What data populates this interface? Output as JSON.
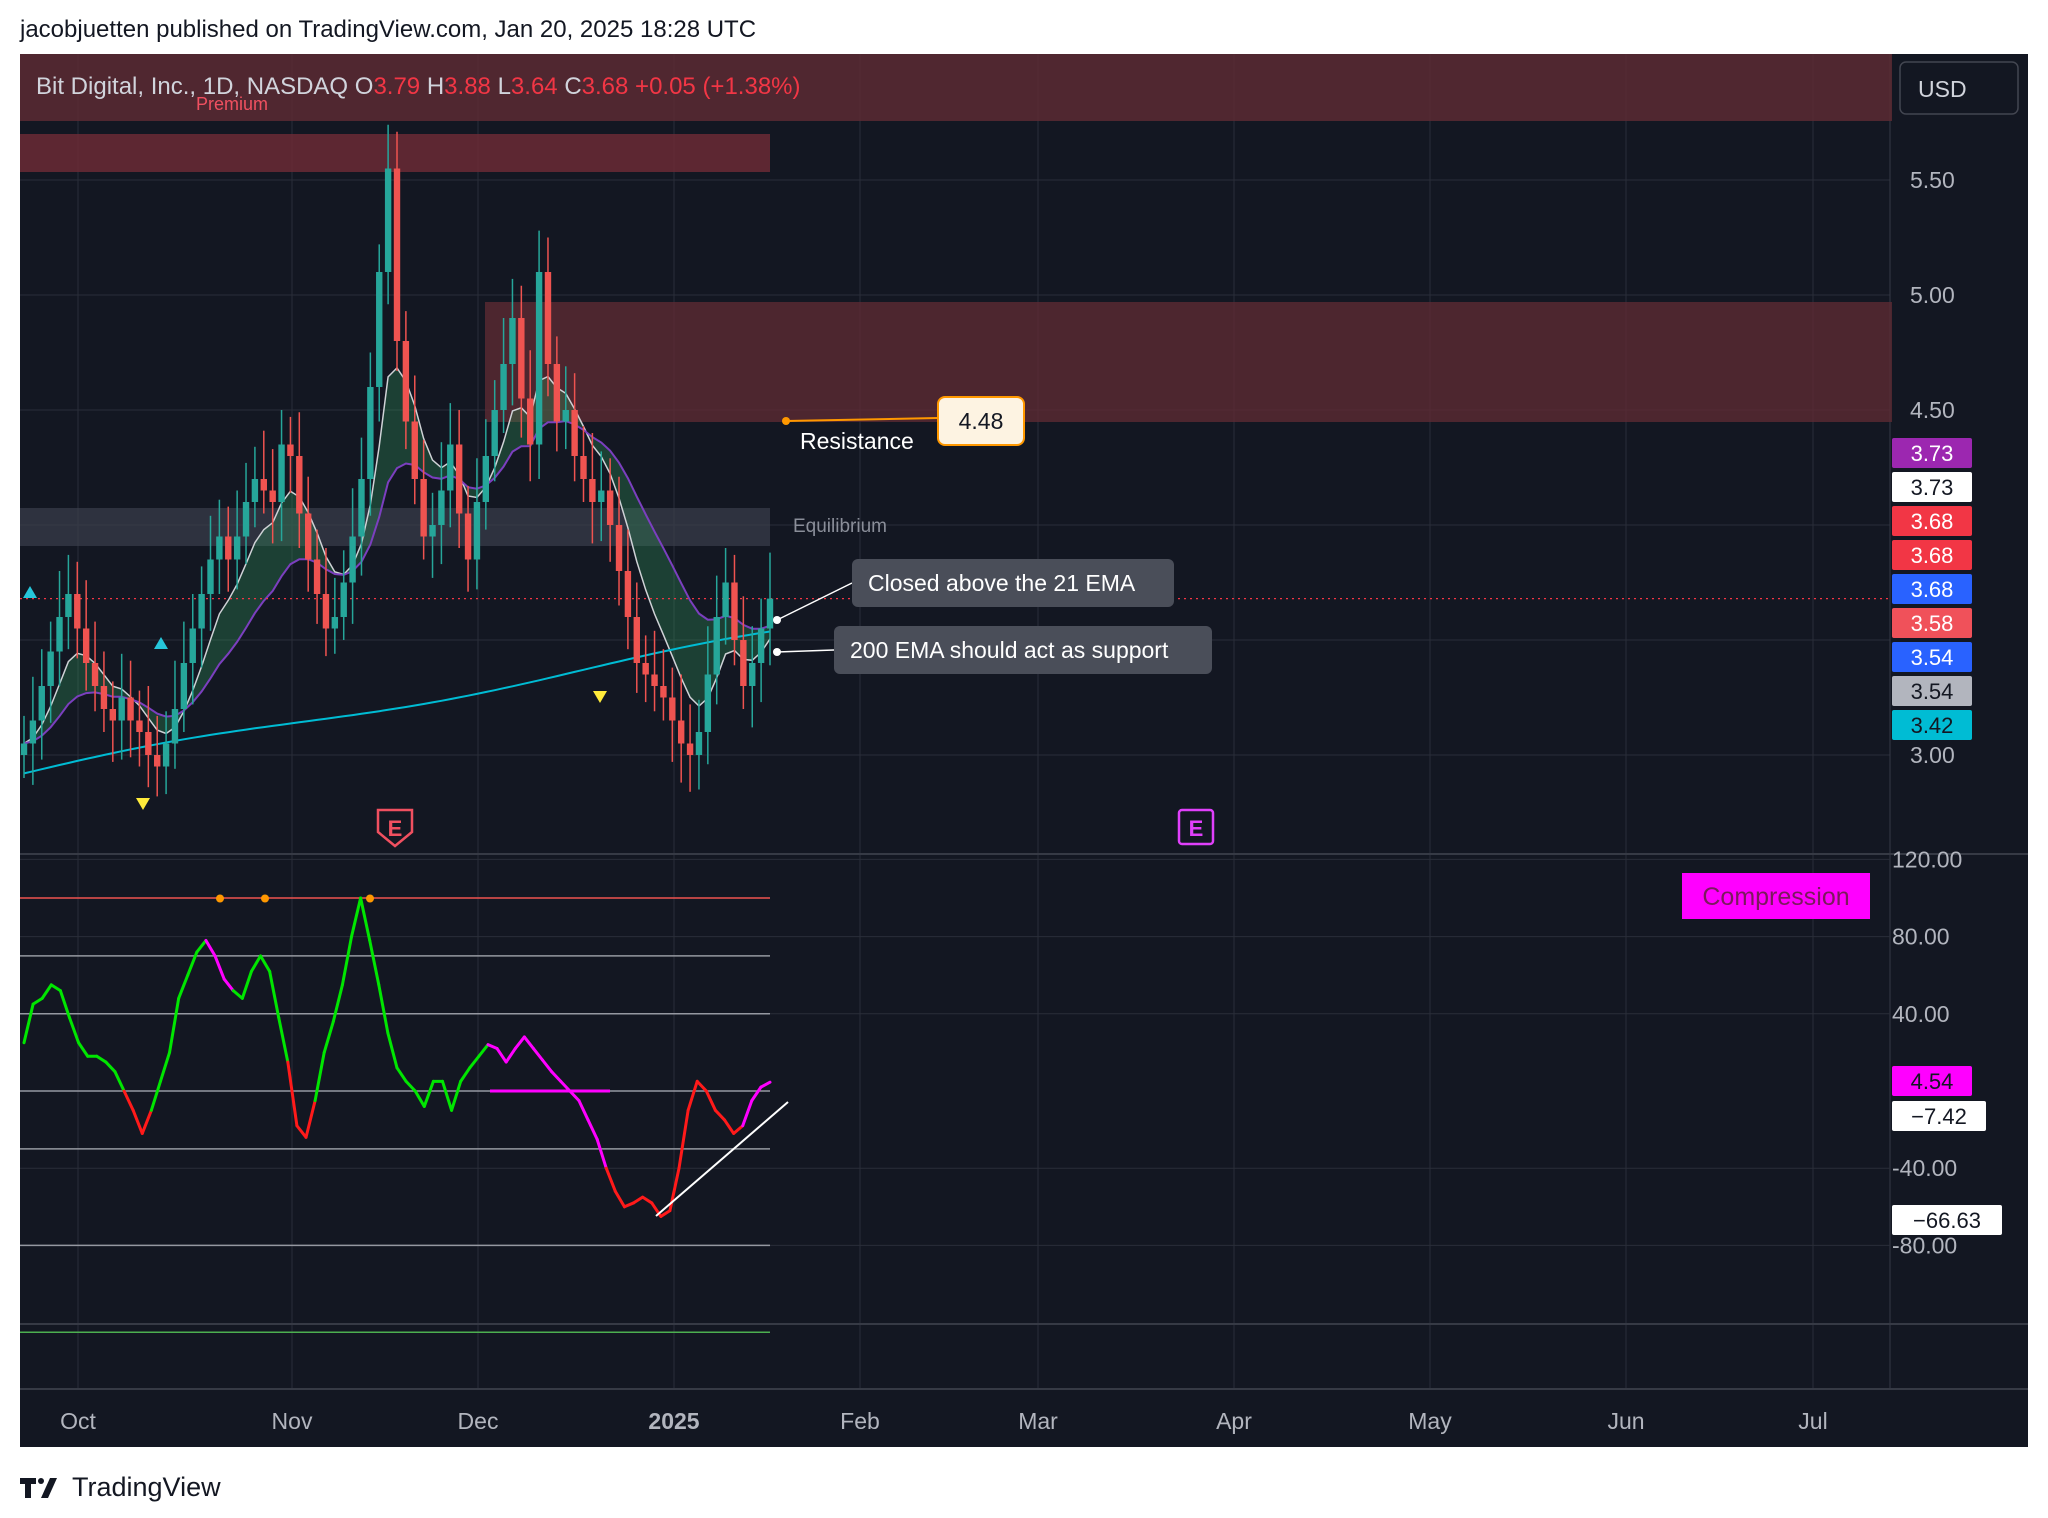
{
  "header": {
    "publisher": "jacobjuetten published on TradingView.com, Jan 20, 2025 18:28 UTC"
  },
  "footer": {
    "brand": "TradingView",
    "logo_icon": "tradingview-logo-icon"
  },
  "currency_button": "USD",
  "colors": {
    "bg": "#131722",
    "grid": "#2a2e39",
    "up": "#26a69a",
    "down": "#ef5350",
    "ema200": "#00bcd4",
    "osc_pos": "#00e600",
    "osc_neg": "#ff1a1a",
    "osc_comp": "#ff00ff",
    "zone": "#5c2a33",
    "equilibrium": "#3a3f4b"
  },
  "chart_data": [
    {
      "type": "candlestick",
      "title": "Bit Digital, Inc., 1D, NASDAQ",
      "ohlc": {
        "o_label": "O",
        "o": "3.79",
        "h_label": "H",
        "h": "3.88",
        "l_label": "L",
        "l": "3.64",
        "c_label": "C",
        "c": "3.68",
        "change": "+0.05 (+1.38%)"
      },
      "x_labels": [
        "Oct",
        "Nov",
        "Dec",
        "2025",
        "Feb",
        "Mar",
        "Apr",
        "May",
        "Jun",
        "Jul"
      ],
      "y_ticks": [
        "5.50",
        "5.00",
        "4.50",
        "3.00"
      ],
      "ylim": [
        2.9,
        5.9
      ],
      "close_series": [
        3.05,
        3.15,
        3.3,
        3.45,
        3.6,
        3.7,
        3.55,
        3.4,
        3.3,
        3.2,
        3.15,
        3.25,
        3.15,
        3.1,
        3.0,
        2.95,
        3.05,
        3.2,
        3.4,
        3.55,
        3.7,
        3.85,
        3.95,
        3.85,
        3.95,
        4.1,
        4.2,
        4.15,
        4.1,
        4.35,
        4.3,
        4.05,
        3.85,
        3.7,
        3.55,
        3.6,
        3.75,
        3.95,
        4.2,
        4.6,
        5.1,
        5.55,
        4.8,
        4.45,
        4.2,
        3.95,
        4.0,
        4.15,
        4.35,
        4.05,
        3.85,
        4.1,
        4.3,
        4.5,
        4.7,
        4.9,
        4.55,
        4.35,
        5.1,
        4.7,
        4.45,
        4.5,
        4.3,
        4.2,
        4.1,
        4.15,
        4.0,
        3.8,
        3.6,
        3.4,
        3.35,
        3.3,
        3.25,
        3.15,
        3.05,
        3.0,
        3.1,
        3.35,
        3.6,
        3.75,
        3.5,
        3.3,
        3.4,
        3.55,
        3.68
      ],
      "annotations": {
        "premium": "Premium",
        "equilibrium": "Equilibrium",
        "resistance_label": "Resistance",
        "resistance_value": "4.48",
        "note_21ema": "Closed above the 21 EMA",
        "note_200ema": "200 EMA should act as support",
        "earnings_marker": "E"
      },
      "price_tags": [
        {
          "value": "3.73",
          "bg": "#9c27b0",
          "fg": "#ffffff"
        },
        {
          "value": "3.73",
          "bg": "#ffffff",
          "fg": "#131722"
        },
        {
          "value": "3.68",
          "bg": "#f23645",
          "fg": "#ffffff"
        },
        {
          "value": "3.68",
          "bg": "#f23645",
          "fg": "#ffffff"
        },
        {
          "value": "3.68",
          "bg": "#2962ff",
          "fg": "#ffffff"
        },
        {
          "value": "3.58",
          "bg": "#f0515a",
          "fg": "#ffffff"
        },
        {
          "value": "3.54",
          "bg": "#2962ff",
          "fg": "#ffffff"
        },
        {
          "value": "3.54",
          "bg": "#b2b5be",
          "fg": "#131722"
        },
        {
          "value": "3.42",
          "bg": "#00bcd4",
          "fg": "#131722"
        }
      ]
    },
    {
      "type": "line",
      "title": "",
      "y_ticks": [
        "120.00",
        "80.00",
        "40.00",
        "-40.00",
        "-80.00"
      ],
      "ylim": [
        -120,
        130
      ],
      "compression_label": "Compression",
      "series": [
        {
          "values": [
            25,
            45,
            48,
            55,
            52,
            38,
            25,
            18,
            18,
            15,
            10,
            0,
            -10,
            -22,
            -10,
            5,
            20,
            48,
            60,
            72,
            78,
            70,
            58,
            52,
            48,
            62,
            70,
            62,
            38,
            15,
            -18,
            -24,
            -5,
            20,
            36,
            55,
            80,
            100,
            78,
            55,
            30,
            12,
            5,
            0,
            -8,
            5,
            5,
            -10,
            5,
            12,
            18,
            24,
            22,
            15,
            22,
            28,
            22,
            16,
            10,
            5,
            0,
            -5,
            -15,
            -25,
            -40,
            -52,
            -60,
            -58,
            -55,
            -58,
            -65,
            -62,
            -40,
            -10,
            5,
            0,
            -10,
            -15,
            -22,
            -18,
            -5,
            2,
            4.54
          ]
        }
      ],
      "price_tags": [
        {
          "value": "4.54",
          "bg": "#ff00ff",
          "fg": "#131722"
        },
        {
          "value": "−7.42",
          "bg": "#ffffff",
          "fg": "#131722"
        },
        {
          "value": "−66.63",
          "bg": "#ffffff",
          "fg": "#131722"
        }
      ]
    }
  ]
}
